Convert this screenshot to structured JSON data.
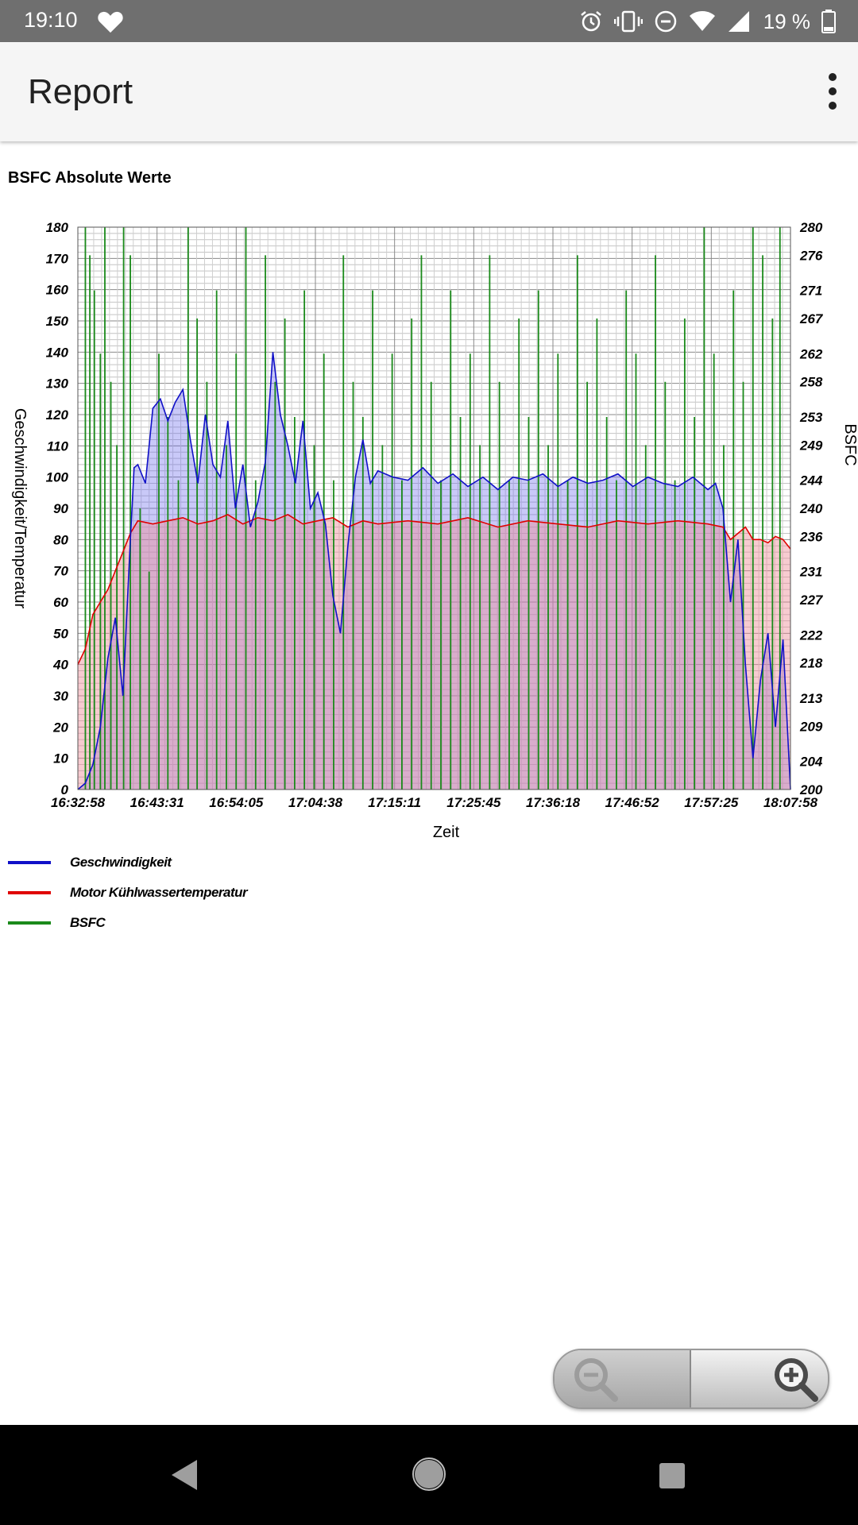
{
  "status_bar": {
    "time": "19:10",
    "battery": "19 %",
    "icons": [
      "heart-icon",
      "alarm-icon",
      "vibrate-icon",
      "do-not-disturb-icon",
      "wifi-icon",
      "signal-icon",
      "battery-icon"
    ]
  },
  "app_bar": {
    "title": "Report",
    "menu_icon": "more-vert-icon"
  },
  "chart_title": "BSFC Absolute Werte",
  "legend": [
    {
      "label": "Geschwindigkeit",
      "color": "#1010c8"
    },
    {
      "label": "Motor Kühlwassertemperatur",
      "color": "#e00000"
    },
    {
      "label": "BSFC",
      "color": "#1a8a1a"
    }
  ],
  "zoom": {
    "out_icon": "zoom-out-icon",
    "in_icon": "zoom-in-icon"
  },
  "nav": {
    "back_icon": "back-triangle-icon",
    "home_icon": "home-circle-icon",
    "recents_icon": "recents-square-icon"
  },
  "chart_data": {
    "type": "line",
    "xlabel": "Zeit",
    "ylabel_left": "Geschwindigkeit/Temperatur",
    "ylabel_right": "BSFC",
    "x_ticks": [
      "16:32:58",
      "16:43:31",
      "16:54:05",
      "17:04:38",
      "17:15:11",
      "17:25:45",
      "17:36:18",
      "17:46:52",
      "17:57:25",
      "18:07:58"
    ],
    "ylim_left": [
      0,
      180
    ],
    "y_ticks_left": [
      0,
      10,
      20,
      30,
      40,
      50,
      60,
      70,
      80,
      90,
      100,
      110,
      120,
      130,
      140,
      150,
      160,
      170,
      180
    ],
    "ylim_right": [
      200,
      280
    ],
    "y_ticks_right": [
      200,
      204,
      209,
      213,
      218,
      222,
      227,
      231,
      236,
      240,
      244,
      249,
      253,
      258,
      262,
      267,
      271,
      276,
      280
    ],
    "grid": true,
    "legend_position": "bottom-left",
    "series": [
      {
        "name": "Geschwindigkeit",
        "color": "#1010c8",
        "fill": "rgba(100,100,235,0.35)",
        "x": [
          0,
          1,
          2,
          3,
          4,
          5,
          6,
          7,
          7.5,
          8,
          9,
          10,
          11,
          12,
          13,
          14,
          15,
          16,
          17,
          18,
          19,
          20,
          21,
          22,
          23,
          24,
          25,
          26,
          27,
          28,
          29,
          30,
          31,
          32,
          33,
          34,
          35,
          36,
          37,
          38,
          39,
          40,
          42,
          44,
          46,
          48,
          50,
          52,
          54,
          56,
          58,
          60,
          62,
          64,
          66,
          68,
          70,
          72,
          74,
          76,
          78,
          80,
          82,
          84,
          85,
          86,
          87,
          88,
          89,
          90,
          91,
          92,
          93,
          94,
          95
        ],
        "values": [
          0,
          2,
          8,
          20,
          42,
          55,
          30,
          80,
          103,
          104,
          98,
          122,
          125,
          118,
          124,
          128,
          112,
          98,
          120,
          104,
          100,
          118,
          90,
          104,
          84,
          92,
          105,
          140,
          120,
          110,
          98,
          118,
          90,
          95,
          85,
          62,
          50,
          78,
          100,
          112,
          98,
          102,
          100,
          99,
          103,
          98,
          101,
          97,
          100,
          96,
          100,
          99,
          101,
          97,
          100,
          98,
          99,
          101,
          97,
          100,
          98,
          97,
          100,
          96,
          98,
          90,
          60,
          80,
          40,
          10,
          35,
          50,
          20,
          48,
          0
        ]
      },
      {
        "name": "Motor Kühlwassertemperatur",
        "color": "#e00000",
        "fill": "rgba(238,140,150,0.45)",
        "x": [
          0,
          1,
          2,
          3,
          4,
          5,
          6,
          7,
          8,
          10,
          12,
          14,
          16,
          18,
          20,
          22,
          24,
          26,
          28,
          30,
          32,
          34,
          36,
          38,
          40,
          44,
          48,
          52,
          56,
          60,
          64,
          68,
          72,
          76,
          80,
          84,
          86,
          87,
          88,
          89,
          90,
          91,
          92,
          93,
          94,
          95
        ],
        "values": [
          40,
          45,
          56,
          60,
          64,
          70,
          76,
          82,
          86,
          85,
          86,
          87,
          85,
          86,
          88,
          85,
          87,
          86,
          88,
          85,
          86,
          87,
          84,
          86,
          85,
          86,
          85,
          87,
          84,
          86,
          85,
          84,
          86,
          85,
          86,
          85,
          84,
          80,
          82,
          84,
          80,
          80,
          79,
          81,
          80,
          77
        ]
      },
      {
        "name": "BSFC",
        "color": "#1a8a1a",
        "x": [
          1,
          1.6,
          2.2,
          3.0,
          3.6,
          4.4,
          5.2,
          6.1,
          7.0,
          8.3,
          9.5,
          10.8,
          12.0,
          13.4,
          14.7,
          15.9,
          17.2,
          18.5,
          19.8,
          21.1,
          22.4,
          23.7,
          25.0,
          26.3,
          27.6,
          28.9,
          30.2,
          31.5,
          32.8,
          34.1,
          35.4,
          36.7,
          38.0,
          39.3,
          40.6,
          41.9,
          43.2,
          44.5,
          45.8,
          47.1,
          48.4,
          49.7,
          51.0,
          52.3,
          53.6,
          54.9,
          56.2,
          57.5,
          58.8,
          60.1,
          61.4,
          62.7,
          64.0,
          65.3,
          66.6,
          67.9,
          69.2,
          70.5,
          71.8,
          73.1,
          74.4,
          75.7,
          77.0,
          78.3,
          79.6,
          80.9,
          82.2,
          83.5,
          84.8,
          86.1,
          87.4,
          88.7,
          90.0,
          91.3,
          92.6,
          93.6
        ],
        "values": [
          280,
          276,
          271,
          262,
          280,
          258,
          249,
          280,
          276,
          240,
          231,
          262,
          253,
          244,
          280,
          267,
          258,
          271,
          249,
          262,
          280,
          244,
          276,
          258,
          267,
          253,
          271,
          249,
          262,
          244,
          276,
          258,
          253,
          271,
          249,
          262,
          244,
          267,
          276,
          258,
          244,
          271,
          253,
          262,
          249,
          276,
          258,
          244,
          267,
          253,
          271,
          249,
          262,
          244,
          276,
          258,
          267,
          253,
          244,
          271,
          262,
          249,
          276,
          258,
          244,
          267,
          253,
          280,
          262,
          249,
          271,
          258,
          280,
          276,
          267,
          280
        ]
      }
    ]
  }
}
